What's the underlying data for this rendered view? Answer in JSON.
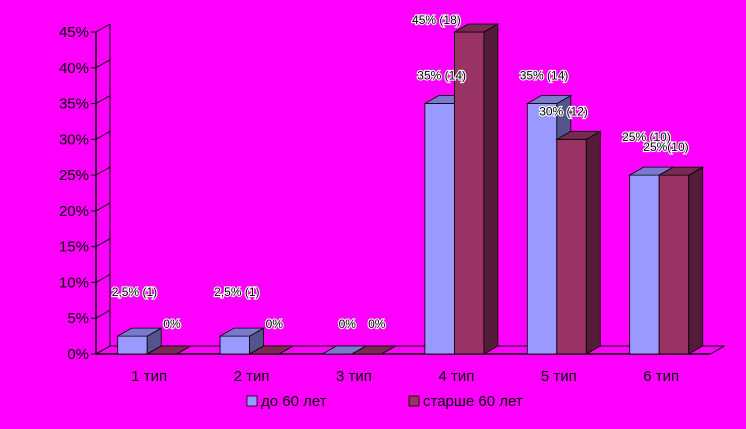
{
  "chart_data": {
    "type": "bar",
    "style": "3d-clustered",
    "categories": [
      "1 тип",
      "2 тип",
      "3 тип",
      "4 тип",
      "5 тип",
      "6 тип"
    ],
    "series": [
      {
        "name": "до 60 лет",
        "color": "#9999FF",
        "values": [
          2.5,
          2.5,
          0,
          35,
          35,
          25
        ],
        "labels": [
          "2,5% (1)",
          "2,5% (1)",
          "0%",
          "35% (14)",
          "35% (14)",
          "25% (10)"
        ]
      },
      {
        "name": "старше 60 лет",
        "color": "#993366",
        "values": [
          0,
          0,
          0,
          45,
          30,
          25
        ],
        "labels": [
          "0%",
          "0%",
          "0%",
          "45% (18)",
          "30% (12)",
          "25%(10)"
        ]
      }
    ],
    "y_ticks": [
      "0%",
      "5%",
      "10%",
      "15%",
      "20%",
      "25%",
      "30%",
      "35%",
      "40%",
      "45%"
    ],
    "ylim": [
      0,
      45
    ],
    "y_unit": "%",
    "grid": false,
    "legend_position": "bottom"
  }
}
